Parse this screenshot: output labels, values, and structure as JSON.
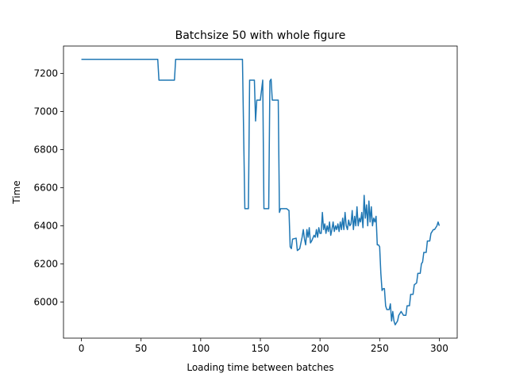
{
  "chart_data": {
    "type": "line",
    "title": "Batchsize 50 with whole figure",
    "x_label": "Loading time between batches",
    "y_label": "Time",
    "xlim": [
      -15,
      315
    ],
    "ylim": [
      5810,
      7344
    ],
    "xticks": [
      0,
      50,
      100,
      150,
      200,
      250,
      300
    ],
    "yticks": [
      6000,
      6200,
      6400,
      6600,
      6800,
      7000,
      7200
    ],
    "series": [
      {
        "color": "#1f77b4",
        "x": [
          0,
          64,
          65,
          78,
          79,
          135,
          137,
          140,
          141,
          145,
          146,
          147,
          150,
          152,
          153,
          157,
          158,
          159,
          160,
          165,
          166,
          167,
          172,
          174,
          175,
          176,
          177,
          180,
          181,
          183,
          185,
          186,
          187,
          188,
          189,
          190,
          191,
          192,
          193,
          195,
          196,
          197,
          198,
          199,
          200,
          201,
          202,
          203,
          204,
          205,
          206,
          207,
          208,
          209,
          210,
          211,
          212,
          213,
          214,
          215,
          216,
          217,
          218,
          219,
          220,
          221,
          222,
          223,
          224,
          225,
          226,
          227,
          228,
          229,
          230,
          231,
          232,
          233,
          234,
          235,
          236,
          237,
          238,
          239,
          240,
          241,
          242,
          243,
          244,
          245,
          246,
          247,
          248,
          249,
          250,
          251,
          252,
          253,
          254,
          255,
          256,
          258,
          259,
          260,
          261,
          262,
          263,
          265,
          266,
          268,
          270,
          272,
          273,
          275,
          276,
          278,
          279,
          281,
          282,
          284,
          285,
          286,
          287,
          289,
          290,
          292,
          293,
          295,
          296,
          298,
          299,
          300
        ],
        "values": [
          7274,
          7274,
          7165,
          7165,
          7274,
          7274,
          6490,
          6490,
          7165,
          7165,
          6950,
          7060,
          7060,
          7165,
          6490,
          6490,
          7160,
          7170,
          7060,
          7060,
          6470,
          6490,
          6490,
          6480,
          6290,
          6280,
          6330,
          6335,
          6270,
          6280,
          6340,
          6380,
          6330,
          6300,
          6380,
          6340,
          6390,
          6310,
          6320,
          6350,
          6340,
          6380,
          6340,
          6390,
          6360,
          6360,
          6470,
          6380,
          6410,
          6360,
          6400,
          6370,
          6420,
          6350,
          6380,
          6420,
          6370,
          6400,
          6380,
          6410,
          6370,
          6420,
          6380,
          6440,
          6380,
          6470,
          6400,
          6380,
          6430,
          6400,
          6410,
          6480,
          6380,
          6450,
          6400,
          6500,
          6400,
          6440,
          6420,
          6470,
          6390,
          6560,
          6440,
          6510,
          6400,
          6530,
          6420,
          6500,
          6400,
          6440,
          6420,
          6450,
          6300,
          6300,
          6290,
          6150,
          6060,
          6070,
          6070,
          5980,
          5960,
          5960,
          5990,
          5900,
          5950,
          5900,
          5880,
          5900,
          5930,
          5950,
          5930,
          5930,
          5980,
          5980,
          6040,
          6040,
          6090,
          6100,
          6150,
          6150,
          6200,
          6210,
          6260,
          6260,
          6320,
          6320,
          6360,
          6380,
          6380,
          6400,
          6420,
          6400
        ]
      }
    ]
  }
}
